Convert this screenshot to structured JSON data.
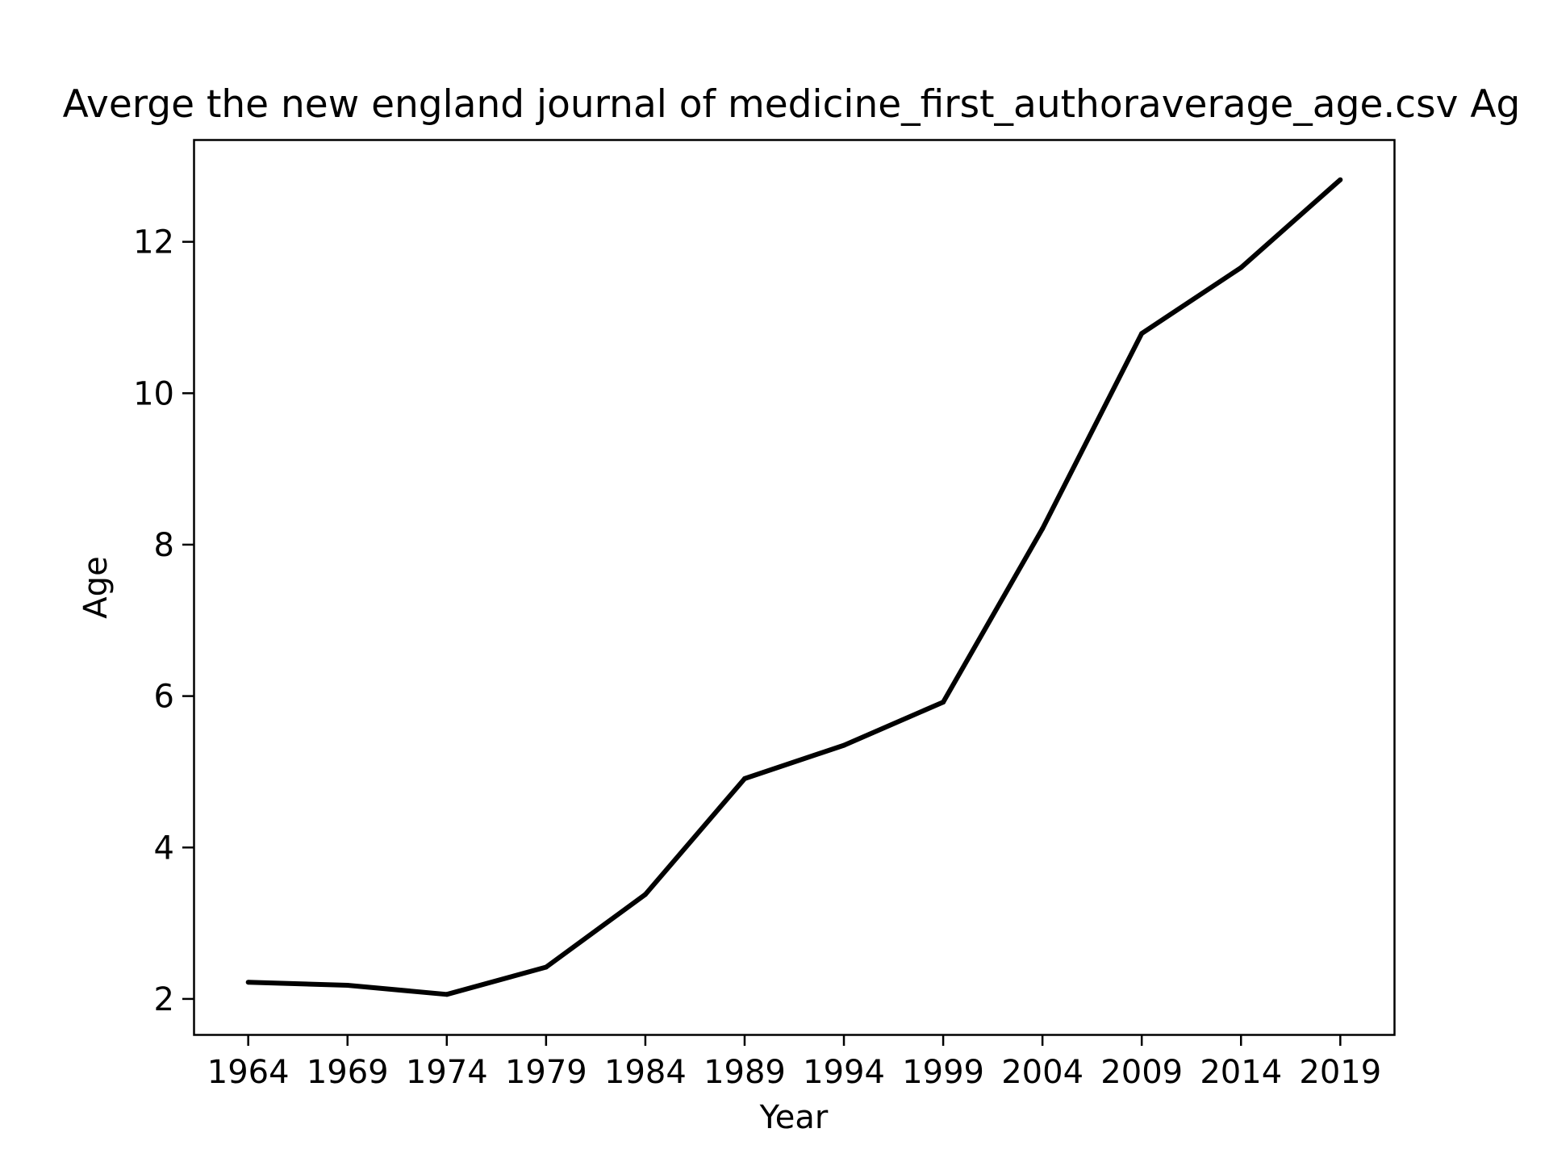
{
  "chart_data": {
    "type": "line",
    "title": "Averge the new england journal of medicine_first_authoraverage_age.csv Ag",
    "xlabel": "Year",
    "ylabel": "Age",
    "x": [
      1964,
      1969,
      1974,
      1979,
      1984,
      1989,
      1994,
      1999,
      2004,
      2009,
      2014,
      2019
    ],
    "series": [
      {
        "values": [
          2.22,
          2.18,
          2.06,
          2.42,
          3.38,
          4.91,
          5.35,
          5.92,
          8.21,
          10.79,
          11.66,
          12.82
        ],
        "color": "#000000"
      }
    ],
    "xticks": [
      1964,
      1969,
      1974,
      1979,
      1984,
      1989,
      1994,
      1999,
      2004,
      2009,
      2014,
      2019
    ],
    "yticks": [
      2,
      4,
      6,
      8,
      10,
      12
    ],
    "xlim": [
      1961.25,
      2021.75
    ],
    "ylim": [
      1.53,
      13.35
    ],
    "grid": false
  }
}
